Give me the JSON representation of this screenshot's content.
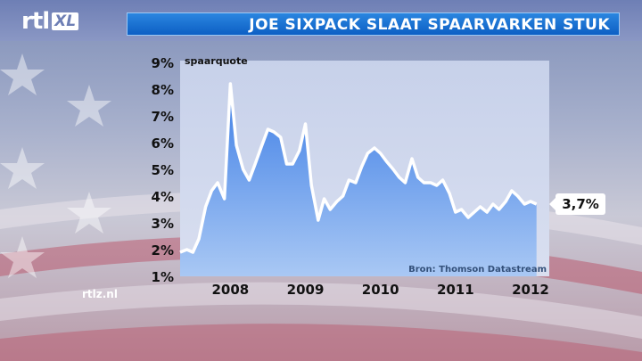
{
  "header": {
    "logo_rtl": "rtl",
    "logo_xl": "XL",
    "title": "JOE SIXPACK SLAAT SPAARVARKEN STUK"
  },
  "watermark": "rtlz.nl",
  "colors": {
    "title_bar": "#0d5fc4",
    "area_top": "#3f7fe6",
    "area_bottom": "#a9c8f4",
    "plot_bg": "#c9d3ea",
    "line": "#ffffff"
  },
  "chart_data": {
    "type": "area",
    "ylabel": "spaarquote",
    "source": "Bron: Thomson Datastream",
    "y_ticks": [
      "9%",
      "8%",
      "7%",
      "6%",
      "5%",
      "4%",
      "3%",
      "2%",
      "1%"
    ],
    "ylim": [
      1,
      9
    ],
    "x_ticks": [
      "2008",
      "2009",
      "2010",
      "2011",
      "2012"
    ],
    "x_tick_values": [
      2008.0,
      2009.0,
      2010.0,
      2011.0,
      2012.0
    ],
    "xlim": [
      2007.33,
      2012.25
    ],
    "grid": false,
    "end_label": "3,7%",
    "x": [
      2007.33,
      2007.42,
      2007.5,
      2007.58,
      2007.67,
      2007.75,
      2007.83,
      2007.92,
      2008.0,
      2008.08,
      2008.17,
      2008.25,
      2008.33,
      2008.42,
      2008.5,
      2008.58,
      2008.67,
      2008.75,
      2008.83,
      2008.92,
      2009.0,
      2009.08,
      2009.17,
      2009.25,
      2009.33,
      2009.42,
      2009.5,
      2009.58,
      2009.67,
      2009.75,
      2009.83,
      2009.92,
      2010.0,
      2010.08,
      2010.17,
      2010.25,
      2010.33,
      2010.42,
      2010.5,
      2010.58,
      2010.67,
      2010.75,
      2010.83,
      2010.92,
      2011.0,
      2011.08,
      2011.17,
      2011.25,
      2011.33,
      2011.42,
      2011.5,
      2011.58,
      2011.67,
      2011.75,
      2011.83,
      2011.92,
      2012.0,
      2012.08
    ],
    "y": [
      1.9,
      2.0,
      1.9,
      2.4,
      3.6,
      4.2,
      4.5,
      3.9,
      8.2,
      5.9,
      5.0,
      4.6,
      5.2,
      5.9,
      6.5,
      6.4,
      6.2,
      5.2,
      5.2,
      5.7,
      6.7,
      4.4,
      3.1,
      3.9,
      3.5,
      3.8,
      4.0,
      4.6,
      4.5,
      5.1,
      5.6,
      5.8,
      5.6,
      5.3,
      5.0,
      4.7,
      4.5,
      5.4,
      4.7,
      4.5,
      4.5,
      4.4,
      4.6,
      4.1,
      3.4,
      3.5,
      3.2,
      3.4,
      3.6,
      3.4,
      3.7,
      3.5,
      3.8,
      4.2,
      4.0,
      3.7,
      3.8,
      3.7
    ]
  }
}
